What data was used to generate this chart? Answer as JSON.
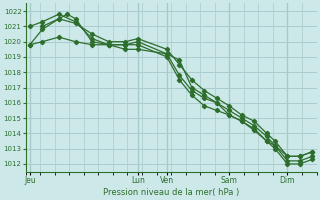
{
  "background_color": "#cce8e8",
  "plot_bg_color": "#cce8e8",
  "grid_color": "#aacccc",
  "line_color": "#2d6e2d",
  "marker_color": "#2d6e2d",
  "tick_color": "#2d6e2d",
  "xlabel": "Pression niveau de la mer( hPa )",
  "ylim": [
    1011.5,
    1022.5
  ],
  "yticks": [
    1012,
    1013,
    1014,
    1015,
    1016,
    1017,
    1018,
    1019,
    1020,
    1021,
    1022
  ],
  "xlim": [
    0,
    35
  ],
  "day_labels": [
    "Jeu",
    "Lun",
    "Ven",
    "Sam",
    "Dim"
  ],
  "day_positions": [
    0.5,
    13.5,
    17.0,
    24.5,
    31.5
  ],
  "vline_positions": [
    0.5,
    13.5,
    17.0,
    24.5,
    31.5
  ],
  "series": [
    {
      "x": [
        0.5,
        2,
        4,
        6,
        8,
        10,
        12,
        13.5,
        17.0,
        18.5,
        20,
        21.5,
        23,
        24.5,
        26,
        27.5,
        29,
        30,
        31.5,
        33,
        34.5
      ],
      "y": [
        1019.8,
        1020.8,
        1021.5,
        1021.2,
        1020.5,
        1020.0,
        1020.0,
        1020.2,
        1019.5,
        1018.5,
        1017.5,
        1016.8,
        1016.3,
        1015.8,
        1015.2,
        1014.8,
        1014.0,
        1013.5,
        1012.5,
        1012.5,
        1012.8
      ],
      "markers": [
        0.5,
        2,
        4,
        6,
        8,
        10,
        12,
        13.5,
        17.0,
        18.5,
        20,
        21.5,
        23,
        24.5,
        26,
        27.5,
        29,
        30,
        31.5,
        33,
        34.5
      ]
    },
    {
      "x": [
        0.5,
        2,
        4,
        6,
        8,
        10,
        12,
        13.5,
        17.0,
        18.5,
        20,
        21.5,
        23,
        24.5,
        26,
        27.5,
        29,
        30,
        31.5,
        33,
        34.5
      ],
      "y": [
        1021.0,
        1021.3,
        1021.8,
        1021.3,
        1020.2,
        1019.8,
        1019.8,
        1020.0,
        1019.2,
        1017.8,
        1016.8,
        1016.3,
        1016.0,
        1015.5,
        1015.0,
        1014.5,
        1013.8,
        1013.2,
        1012.2,
        1012.2,
        1012.5
      ],
      "markers": [
        0.5,
        2,
        4,
        6,
        8,
        10,
        12,
        13.5,
        17.0,
        18.5,
        20,
        21.5,
        23,
        24.5,
        26,
        27.5,
        29,
        30,
        31.5,
        33,
        34.5
      ]
    },
    {
      "x": [
        2,
        4,
        5,
        6,
        8,
        10,
        12,
        13.5,
        17.0,
        18.5,
        20,
        21.5,
        23,
        24.5,
        26,
        27.5,
        29,
        30,
        31.5,
        33,
        34.5
      ],
      "y": [
        1021.0,
        1021.5,
        1021.8,
        1021.5,
        1020.0,
        1019.8,
        1019.8,
        1019.8,
        1019.0,
        1017.5,
        1016.5,
        1015.8,
        1015.5,
        1015.2,
        1014.8,
        1014.2,
        1013.5,
        1013.0,
        1012.0,
        1012.0,
        1012.3
      ],
      "markers": [
        2,
        4,
        5,
        6,
        8,
        10,
        12,
        13.5,
        17.0,
        18.5,
        20,
        21.5,
        23,
        24.5,
        26,
        27.5,
        29,
        30,
        31.5,
        33,
        34.5
      ]
    },
    {
      "x": [
        0.5,
        2,
        4,
        6,
        8,
        10,
        12,
        13.5,
        17.0,
        18.5,
        20,
        21.5,
        23,
        24.5,
        26,
        27.5,
        29,
        30,
        31.5,
        33,
        34.5
      ],
      "y": [
        1019.8,
        1020.0,
        1020.3,
        1020.0,
        1019.8,
        1019.8,
        1019.5,
        1019.5,
        1019.2,
        1018.8,
        1017.0,
        1016.5,
        1016.0,
        1015.2,
        1014.8,
        1014.3,
        1013.5,
        1013.2,
        1012.5,
        1012.5,
        1012.8
      ],
      "markers": [
        0.5,
        2,
        4,
        6,
        8,
        10,
        12,
        13.5,
        17.0,
        18.5,
        20,
        21.5,
        23,
        24.5,
        26,
        27.5,
        29,
        30,
        31.5,
        33,
        34.5
      ]
    }
  ]
}
